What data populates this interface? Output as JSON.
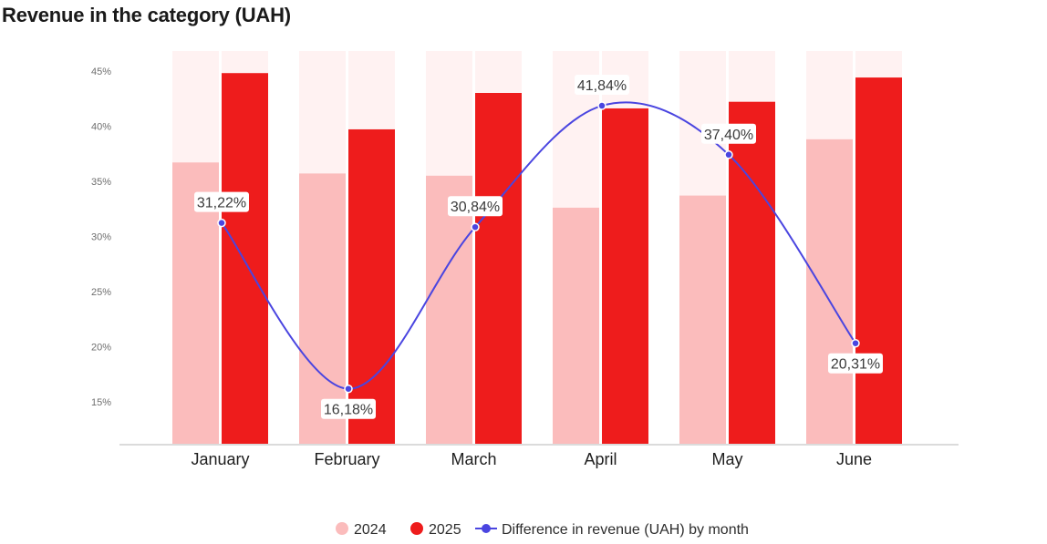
{
  "chart_data": {
    "type": "bar",
    "title": "Revenue in the category (UAH)",
    "categories": [
      "January",
      "February",
      "March",
      "April",
      "May",
      "June"
    ],
    "series": [
      {
        "name": "2024",
        "kind": "bar",
        "color": "#fbbcbc",
        "values": [
          36.7,
          35.7,
          35.5,
          32.6,
          33.7,
          38.8
        ]
      },
      {
        "name": "2025",
        "kind": "bar",
        "color": "#ee1c1c",
        "values": [
          44.8,
          39.7,
          43.0,
          41.6,
          42.2,
          44.4
        ]
      },
      {
        "name": "Difference in revenue (UAH) by month",
        "kind": "line",
        "color": "#4a45e0",
        "values": [
          31.22,
          16.18,
          30.84,
          41.84,
          37.4,
          20.31
        ],
        "labels": [
          "31,22%",
          "16,18%",
          "30,84%",
          "41,84%",
          "37,40%",
          "20,31%"
        ]
      }
    ],
    "yticks": [
      15,
      20,
      25,
      30,
      35,
      40,
      45
    ],
    "ytick_labels": [
      "15%",
      "20%",
      "25%",
      "30%",
      "35%",
      "40%",
      "45%"
    ],
    "ylim": [
      11.2,
      46.8
    ],
    "background_bar_color": "#fff2f2",
    "grid": false,
    "legend_position": "bottom"
  }
}
